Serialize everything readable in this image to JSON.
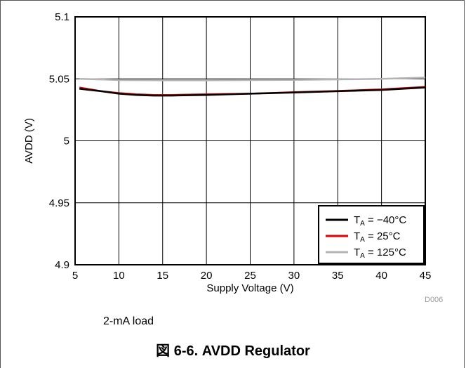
{
  "chart_data": {
    "type": "line",
    "xlabel": "Supply Voltage (V)",
    "ylabel": "AVDD (V)",
    "xlim": [
      5,
      45
    ],
    "ylim": [
      4.9,
      5.1
    ],
    "x_ticks": [
      "5",
      "10",
      "15",
      "20",
      "25",
      "30",
      "35",
      "40",
      "45"
    ],
    "y_ticks": [
      "4.9",
      "4.95",
      "5",
      "5.05",
      "5.1"
    ],
    "grid": true,
    "legend_position": "bottom-right",
    "series": [
      {
        "name": "TA = −40°C",
        "label_main": "T",
        "label_sub": "A",
        "label_rest": " = −40°C",
        "color": "#000000",
        "x": [
          5.5,
          8,
          10,
          12,
          14,
          16,
          20,
          25,
          30,
          35,
          40,
          45
        ],
        "y": [
          5.042,
          5.04,
          5.038,
          5.037,
          5.0365,
          5.0365,
          5.037,
          5.038,
          5.039,
          5.04,
          5.041,
          5.043
        ]
      },
      {
        "name": "TA = 25°C",
        "label_main": "T",
        "label_sub": "A",
        "label_rest": " = 25°C",
        "color": "#e00000",
        "x": [
          5.5,
          8,
          10,
          12,
          14,
          16,
          20,
          25,
          30,
          35,
          40,
          45
        ],
        "y": [
          5.043,
          5.04,
          5.0385,
          5.0375,
          5.037,
          5.037,
          5.0375,
          5.038,
          5.0392,
          5.0402,
          5.0415,
          5.0435
        ]
      },
      {
        "name": "TA = 125°C",
        "label_main": "T",
        "label_sub": "A",
        "label_rest": " = 125°C",
        "color": "#b4b4b4",
        "x": [
          5.5,
          8,
          10,
          15,
          20,
          25,
          30,
          35,
          40,
          45
        ],
        "y": [
          5.05,
          5.0495,
          5.049,
          5.0488,
          5.0488,
          5.049,
          5.0492,
          5.0496,
          5.05,
          5.051
        ]
      }
    ]
  },
  "source_id": "D006",
  "load_note": "2-mA load",
  "figure_caption": "図 6-6. AVDD Regulator"
}
